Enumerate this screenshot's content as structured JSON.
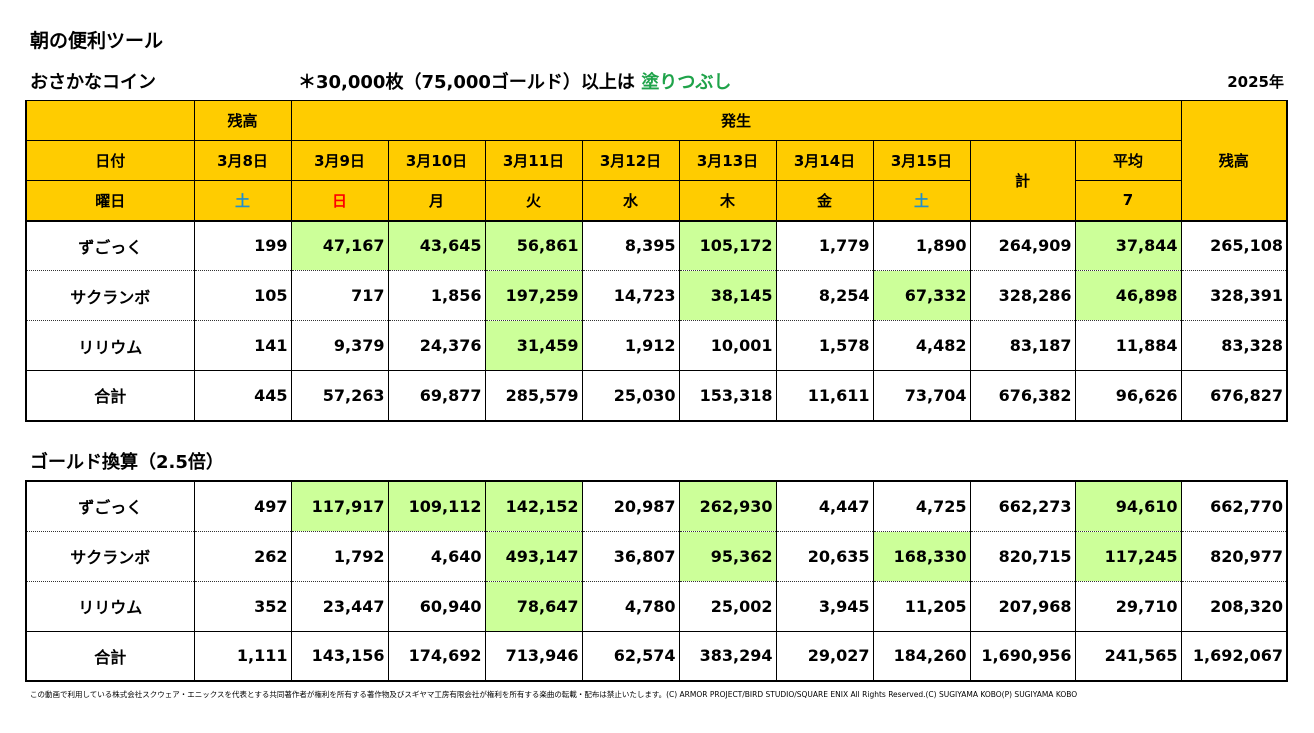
{
  "title": "朝の便利ツール",
  "section1_title": "おさかなコイン",
  "note_prefix": "＊30,000枚（75,000ゴールド）以上は",
  "note_highlight": "塗りつぶし",
  "year": "2025年",
  "section2_title": "ゴールド換算（2.5倍）",
  "copyright": "この動画で利用している株式会社スクウェア・エニックスを代表とする共同著作者が権利を所有する著作物及びスギヤマ工房有限会社が権利を所有する楽曲の転載・配布は禁止いたします。(C) ARMOR PROJECT/BIRD STUDIO/SQUARE ENIX All Rights Reserved.(C) SUGIYAMA KOBO(P) SUGIYAMA KOBO",
  "colors": {
    "header_bg": "#ffcc00",
    "highlight_bg": "#ccff99",
    "sunday": "#ff0000",
    "saturday": "#1f8fcf",
    "note_green": "#1fa34a"
  },
  "header": {
    "zandaka": "残高",
    "hassei": "発生",
    "hizuke": "日付",
    "youbi": "曜日",
    "kei": "計",
    "heikin": "平均",
    "heikin_days": "7",
    "zandaka_end": "残高",
    "dates": [
      "3月8日",
      "3月9日",
      "3月10日",
      "3月11日",
      "3月12日",
      "3月13日",
      "3月14日",
      "3月15日"
    ],
    "days": [
      "土",
      "日",
      "月",
      "火",
      "水",
      "木",
      "金",
      "土"
    ]
  },
  "coins": {
    "rows": [
      {
        "name": "ずごっく",
        "values": [
          "199",
          "47,167",
          "43,645",
          "56,861",
          "8,395",
          "105,172",
          "1,779",
          "1,890",
          "264,909",
          "37,844",
          "265,108"
        ],
        "highlight": [
          false,
          true,
          true,
          true,
          false,
          true,
          false,
          false,
          false,
          true,
          false
        ]
      },
      {
        "name": "サクランボ",
        "values": [
          "105",
          "717",
          "1,856",
          "197,259",
          "14,723",
          "38,145",
          "8,254",
          "67,332",
          "328,286",
          "46,898",
          "328,391"
        ],
        "highlight": [
          false,
          false,
          false,
          true,
          false,
          true,
          false,
          true,
          false,
          true,
          false
        ]
      },
      {
        "name": "リリウム",
        "values": [
          "141",
          "9,379",
          "24,376",
          "31,459",
          "1,912",
          "10,001",
          "1,578",
          "4,482",
          "83,187",
          "11,884",
          "83,328"
        ],
        "highlight": [
          false,
          false,
          false,
          true,
          false,
          false,
          false,
          false,
          false,
          false,
          false
        ]
      },
      {
        "name": "合計",
        "values": [
          "445",
          "57,263",
          "69,877",
          "285,579",
          "25,030",
          "153,318",
          "11,611",
          "73,704",
          "676,382",
          "96,626",
          "676,827"
        ],
        "highlight": [
          false,
          false,
          false,
          false,
          false,
          false,
          false,
          false,
          false,
          false,
          false
        ]
      }
    ]
  },
  "gold": {
    "rows": [
      {
        "name": "ずごっく",
        "values": [
          "497",
          "117,917",
          "109,112",
          "142,152",
          "20,987",
          "262,930",
          "4,447",
          "4,725",
          "662,273",
          "94,610",
          "662,770"
        ],
        "highlight": [
          false,
          true,
          true,
          true,
          false,
          true,
          false,
          false,
          false,
          true,
          false
        ]
      },
      {
        "name": "サクランボ",
        "values": [
          "262",
          "1,792",
          "4,640",
          "493,147",
          "36,807",
          "95,362",
          "20,635",
          "168,330",
          "820,715",
          "117,245",
          "820,977"
        ],
        "highlight": [
          false,
          false,
          false,
          true,
          false,
          true,
          false,
          true,
          false,
          true,
          false
        ]
      },
      {
        "name": "リリウム",
        "values": [
          "352",
          "23,447",
          "60,940",
          "78,647",
          "4,780",
          "25,002",
          "3,945",
          "11,205",
          "207,968",
          "29,710",
          "208,320"
        ],
        "highlight": [
          false,
          false,
          false,
          true,
          false,
          false,
          false,
          false,
          false,
          false,
          false
        ]
      },
      {
        "name": "合計",
        "values": [
          "1,111",
          "143,156",
          "174,692",
          "713,946",
          "62,574",
          "383,294",
          "29,027",
          "184,260",
          "1,690,956",
          "241,565",
          "1,692,067"
        ],
        "highlight": [
          false,
          false,
          false,
          false,
          false,
          false,
          false,
          false,
          false,
          false,
          false
        ]
      }
    ]
  }
}
